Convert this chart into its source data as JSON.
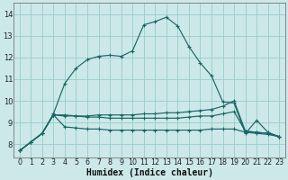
{
  "xlabel": "Humidex (Indice chaleur)",
  "xlim": [
    -0.5,
    23.5
  ],
  "ylim": [
    7.4,
    14.5
  ],
  "yticks": [
    8,
    9,
    10,
    11,
    12,
    13,
    14
  ],
  "xticks": [
    0,
    1,
    2,
    3,
    4,
    5,
    6,
    7,
    8,
    9,
    10,
    11,
    12,
    13,
    14,
    15,
    16,
    17,
    18,
    19,
    20,
    21,
    22,
    23
  ],
  "bg_color": "#cce8e8",
  "grid_color": "#99cccc",
  "line_color": "#1a6666",
  "line1_y": [
    7.7,
    8.1,
    8.5,
    9.4,
    10.8,
    11.5,
    11.9,
    12.05,
    12.1,
    12.05,
    12.3,
    13.5,
    13.65,
    13.85,
    13.45,
    12.5,
    11.75,
    11.15,
    9.95,
    9.9,
    8.5,
    9.1,
    8.55,
    8.35
  ],
  "line2_y": [
    7.7,
    8.1,
    8.5,
    9.35,
    9.3,
    9.3,
    9.25,
    9.25,
    9.2,
    9.2,
    9.2,
    9.2,
    9.2,
    9.2,
    9.2,
    9.25,
    9.3,
    9.3,
    9.4,
    9.5,
    8.6,
    8.55,
    8.5,
    8.35
  ],
  "line3_y": [
    7.7,
    8.1,
    8.5,
    9.35,
    8.8,
    8.75,
    8.7,
    8.7,
    8.65,
    8.65,
    8.65,
    8.65,
    8.65,
    8.65,
    8.65,
    8.65,
    8.65,
    8.7,
    8.7,
    8.7,
    8.55,
    8.5,
    8.45,
    8.35
  ],
  "line4_y": [
    7.7,
    8.1,
    8.5,
    9.35,
    9.35,
    9.3,
    9.3,
    9.35,
    9.35,
    9.35,
    9.35,
    9.4,
    9.4,
    9.45,
    9.45,
    9.5,
    9.55,
    9.6,
    9.75,
    10.0,
    8.6,
    8.55,
    8.5,
    8.35
  ]
}
